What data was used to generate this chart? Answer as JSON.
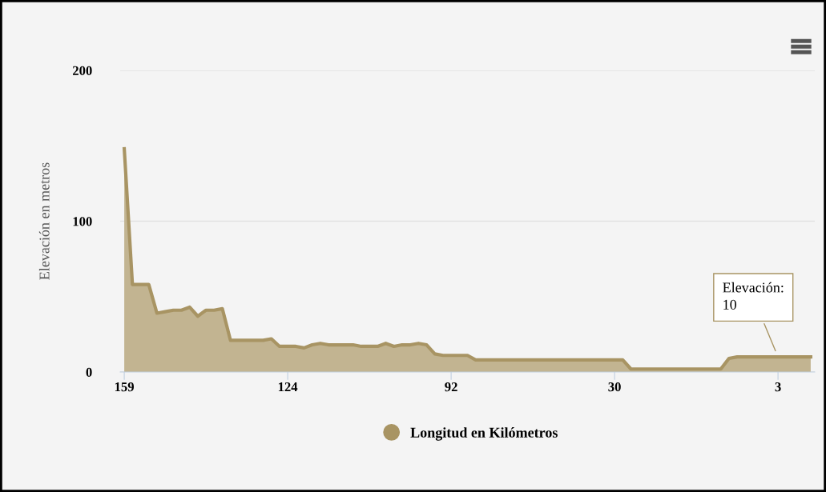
{
  "chart_data": {
    "type": "area",
    "ylabel": "Elevación en metros",
    "categories": [
      "159",
      null,
      null,
      null,
      null,
      null,
      null,
      null,
      null,
      null,
      null,
      null,
      null,
      null,
      null,
      null,
      null,
      null,
      null,
      null,
      "124",
      null,
      null,
      null,
      null,
      null,
      null,
      null,
      null,
      null,
      null,
      null,
      null,
      null,
      null,
      null,
      null,
      null,
      null,
      null,
      "92",
      null,
      null,
      null,
      null,
      null,
      null,
      null,
      null,
      null,
      null,
      null,
      null,
      null,
      null,
      null,
      null,
      null,
      null,
      null,
      "30",
      null,
      null,
      null,
      null,
      null,
      null,
      null,
      null,
      null,
      null,
      null,
      null,
      null,
      null,
      null,
      null,
      null,
      null,
      null,
      "3",
      null,
      null,
      null,
      null
    ],
    "series": [
      {
        "name": "Longitud en Kilómetros",
        "color": "#a89463",
        "values": [
          148,
          58,
          58,
          58,
          39,
          40,
          41,
          41,
          43,
          37,
          41,
          41,
          42,
          21,
          21,
          21,
          21,
          21,
          22,
          17,
          17,
          17,
          16,
          18,
          19,
          18,
          18,
          18,
          18,
          17,
          17,
          17,
          19,
          17,
          18,
          18,
          19,
          18,
          12,
          11,
          11,
          11,
          11,
          8,
          8,
          8,
          8,
          8,
          8,
          8,
          8,
          8,
          8,
          8,
          8,
          8,
          8,
          8,
          8,
          8,
          8,
          8,
          2,
          2,
          2,
          2,
          2,
          2,
          2,
          2,
          2,
          2,
          2,
          2,
          9,
          10,
          10,
          10,
          10,
          10,
          10,
          10,
          10,
          10,
          10
        ]
      }
    ],
    "ylim": [
      0,
      200
    ],
    "yticks": [
      0,
      100,
      200
    ],
    "grid": "y",
    "legend": "bottom",
    "annotations": [
      {
        "text": "Elevación:\n10",
        "x": "3",
        "y": 10
      }
    ]
  }
}
